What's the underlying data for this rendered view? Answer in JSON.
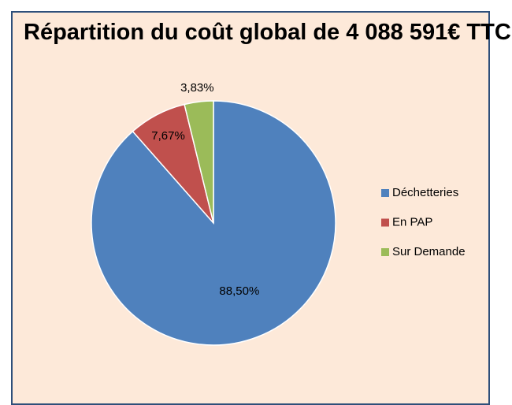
{
  "chart_data": {
    "type": "pie",
    "title": "Répartition du coût global de 4 088 591€ TTC",
    "categories": [
      "Déchetteries",
      "En PAP",
      "Sur Demande"
    ],
    "values": [
      88.5,
      7.67,
      3.83
    ],
    "value_labels": [
      "88,50%",
      "7,67%",
      "3,83%"
    ],
    "colors": [
      "#4f81bd",
      "#c0504d",
      "#9bbb59"
    ],
    "legend": "right"
  }
}
